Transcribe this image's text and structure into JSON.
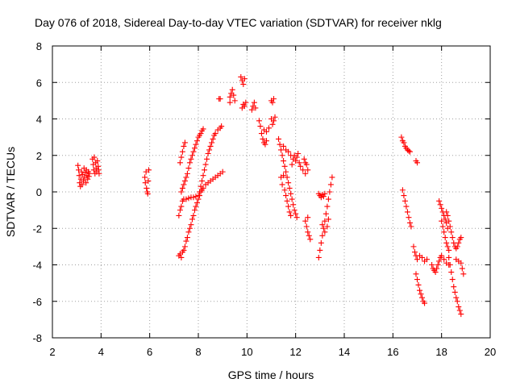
{
  "chart_data": {
    "type": "scatter",
    "title": "Day 076 of 2018, Sidereal Day-to-day VTEC variation (SDTVAR) for receiver nklg",
    "xlabel": "GPS time / hours",
    "ylabel": "SDTVAR / TECUs",
    "xlim": [
      2,
      20
    ],
    "ylim": [
      -8,
      8
    ],
    "xticks": [
      2,
      4,
      6,
      8,
      10,
      12,
      14,
      16,
      18,
      20
    ],
    "yticks": [
      -8,
      -6,
      -4,
      -2,
      0,
      2,
      4,
      6,
      8
    ],
    "xtick_labels": [
      "2",
      "4",
      "6",
      "8",
      "10",
      "12",
      "14",
      "16",
      "18",
      "20"
    ],
    "ytick_labels": [
      "-8",
      "-6",
      "-4",
      "-2",
      "0",
      "2",
      "4",
      "6",
      "8"
    ],
    "grid": true,
    "marker": "+",
    "color": "#ff0000",
    "series": [
      {
        "name": "SDTVAR",
        "points": [
          [
            3.05,
            1.45
          ],
          [
            3.08,
            1.2
          ],
          [
            3.1,
            0.9
          ],
          [
            3.12,
            0.5
          ],
          [
            3.15,
            0.3
          ],
          [
            3.17,
            0.7
          ],
          [
            3.2,
            1.1
          ],
          [
            3.22,
            0.4
          ],
          [
            3.25,
            0.95
          ],
          [
            3.28,
            0.6
          ],
          [
            3.3,
            1.3
          ],
          [
            3.32,
            0.8
          ],
          [
            3.35,
            1.05
          ],
          [
            3.38,
            0.5
          ],
          [
            3.4,
            1.2
          ],
          [
            3.42,
            0.9
          ],
          [
            3.45,
            0.7
          ],
          [
            3.48,
            1.1
          ],
          [
            3.5,
            0.85
          ],
          [
            3.52,
            1.0
          ],
          [
            3.65,
            1.8
          ],
          [
            3.68,
            1.5
          ],
          [
            3.7,
            1.2
          ],
          [
            3.72,
            1.9
          ],
          [
            3.75,
            1.0
          ],
          [
            3.78,
            1.6
          ],
          [
            3.8,
            1.3
          ],
          [
            3.82,
            1.1
          ],
          [
            3.85,
            1.7
          ],
          [
            3.88,
            1.4
          ],
          [
            3.9,
            1.2
          ],
          [
            3.92,
            1.0
          ],
          [
            5.8,
            0.8
          ],
          [
            5.82,
            0.5
          ],
          [
            5.85,
            1.1
          ],
          [
            5.87,
            0.2
          ],
          [
            5.9,
            0.0
          ],
          [
            5.92,
            -0.1
          ],
          [
            5.94,
            0.6
          ],
          [
            5.96,
            1.2
          ],
          [
            7.2,
            -3.5
          ],
          [
            7.25,
            -3.4
          ],
          [
            7.3,
            -3.6
          ],
          [
            7.35,
            -3.3
          ],
          [
            7.4,
            -3.2
          ],
          [
            7.45,
            -3.0
          ],
          [
            7.5,
            -2.7
          ],
          [
            7.55,
            -2.5
          ],
          [
            7.6,
            -2.2
          ],
          [
            7.65,
            -2.0
          ],
          [
            7.7,
            -1.8
          ],
          [
            7.75,
            -1.5
          ],
          [
            7.8,
            -1.3
          ],
          [
            7.85,
            -1.0
          ],
          [
            7.9,
            -0.8
          ],
          [
            7.95,
            -0.6
          ],
          [
            8.0,
            -0.4
          ],
          [
            8.05,
            -0.2
          ],
          [
            8.1,
            0.0
          ],
          [
            8.15,
            0.1
          ],
          [
            8.2,
            0.2
          ],
          [
            8.3,
            0.4
          ],
          [
            8.4,
            0.5
          ],
          [
            8.5,
            0.6
          ],
          [
            8.6,
            0.7
          ],
          [
            8.7,
            0.8
          ],
          [
            8.8,
            0.9
          ],
          [
            8.9,
            1.0
          ],
          [
            9.0,
            1.1
          ],
          [
            7.2,
            -1.3
          ],
          [
            7.25,
            -1.0
          ],
          [
            7.3,
            -0.8
          ],
          [
            7.35,
            -0.5
          ],
          [
            7.4,
            -0.4
          ],
          [
            7.5,
            -0.4
          ],
          [
            7.6,
            -0.35
          ],
          [
            7.7,
            -0.3
          ],
          [
            7.8,
            -0.3
          ],
          [
            7.9,
            -0.25
          ],
          [
            8.0,
            -0.2
          ],
          [
            8.05,
            0.0
          ],
          [
            8.1,
            0.3
          ],
          [
            8.15,
            0.6
          ],
          [
            8.2,
            0.9
          ],
          [
            8.25,
            1.2
          ],
          [
            8.3,
            1.5
          ],
          [
            8.35,
            1.8
          ],
          [
            8.4,
            2.1
          ],
          [
            8.45,
            2.3
          ],
          [
            8.5,
            2.5
          ],
          [
            8.55,
            2.7
          ],
          [
            8.6,
            2.9
          ],
          [
            8.65,
            3.1
          ],
          [
            8.7,
            3.2
          ],
          [
            8.8,
            3.4
          ],
          [
            8.9,
            3.5
          ],
          [
            8.95,
            3.6
          ],
          [
            7.25,
            1.6
          ],
          [
            7.3,
            1.9
          ],
          [
            7.35,
            2.2
          ],
          [
            7.4,
            2.5
          ],
          [
            7.45,
            2.7
          ],
          [
            7.3,
            0.0
          ],
          [
            7.35,
            0.2
          ],
          [
            7.4,
            0.4
          ],
          [
            7.45,
            0.6
          ],
          [
            7.5,
            0.8
          ],
          [
            7.55,
            1.0
          ],
          [
            7.6,
            1.3
          ],
          [
            7.65,
            1.6
          ],
          [
            7.7,
            1.8
          ],
          [
            7.75,
            2.0
          ],
          [
            7.8,
            2.2
          ],
          [
            7.85,
            2.4
          ],
          [
            7.9,
            2.6
          ],
          [
            7.95,
            2.8
          ],
          [
            8.0,
            3.0
          ],
          [
            8.05,
            3.1
          ],
          [
            8.1,
            3.2
          ],
          [
            8.15,
            3.35
          ],
          [
            8.2,
            3.45
          ],
          [
            8.85,
            5.1
          ],
          [
            8.9,
            5.1
          ],
          [
            9.3,
            5.2
          ],
          [
            9.35,
            5.4
          ],
          [
            9.4,
            5.6
          ],
          [
            9.45,
            5.3
          ],
          [
            9.5,
            5.0
          ],
          [
            9.3,
            4.9
          ],
          [
            9.75,
            6.3
          ],
          [
            9.8,
            6.1
          ],
          [
            9.85,
            5.9
          ],
          [
            9.9,
            6.2
          ],
          [
            9.8,
            4.6
          ],
          [
            9.85,
            4.8
          ],
          [
            9.9,
            4.7
          ],
          [
            9.95,
            4.9
          ],
          [
            10.2,
            4.5
          ],
          [
            10.25,
            4.7
          ],
          [
            10.3,
            4.9
          ],
          [
            10.35,
            4.6
          ],
          [
            10.5,
            3.9
          ],
          [
            10.55,
            3.6
          ],
          [
            10.6,
            3.2
          ],
          [
            10.65,
            2.9
          ],
          [
            10.7,
            2.7
          ],
          [
            10.75,
            2.6
          ],
          [
            10.8,
            2.8
          ],
          [
            10.7,
            3.4
          ],
          [
            10.8,
            3.3
          ],
          [
            10.9,
            3.5
          ],
          [
            11.0,
            5.0
          ],
          [
            11.05,
            4.9
          ],
          [
            11.1,
            5.1
          ],
          [
            11.0,
            4.0
          ],
          [
            11.05,
            3.7
          ],
          [
            11.1,
            3.9
          ],
          [
            11.15,
            4.1
          ],
          [
            11.3,
            2.9
          ],
          [
            11.35,
            2.6
          ],
          [
            11.4,
            2.3
          ],
          [
            11.45,
            2.0
          ],
          [
            11.5,
            1.7
          ],
          [
            11.55,
            1.4
          ],
          [
            11.6,
            1.1
          ],
          [
            11.65,
            0.8
          ],
          [
            11.7,
            0.5
          ],
          [
            11.75,
            0.2
          ],
          [
            11.8,
            -0.1
          ],
          [
            11.85,
            -0.4
          ],
          [
            11.9,
            -0.7
          ],
          [
            11.95,
            -1.0
          ],
          [
            12.0,
            -1.2
          ],
          [
            12.05,
            -1.4
          ],
          [
            11.4,
            0.8
          ],
          [
            11.45,
            0.4
          ],
          [
            11.5,
            0.9
          ],
          [
            11.55,
            0.1
          ],
          [
            11.6,
            -0.2
          ],
          [
            11.65,
            -0.5
          ],
          [
            11.7,
            -0.8
          ],
          [
            11.75,
            -1.1
          ],
          [
            11.8,
            -1.3
          ],
          [
            11.85,
            1.5
          ],
          [
            11.9,
            1.8
          ],
          [
            11.95,
            2.0
          ],
          [
            12.0,
            1.7
          ],
          [
            12.05,
            1.9
          ],
          [
            12.1,
            2.1
          ],
          [
            12.15,
            1.6
          ],
          [
            12.2,
            1.4
          ],
          [
            12.3,
            1.2
          ],
          [
            12.4,
            1.0
          ],
          [
            11.5,
            2.5
          ],
          [
            11.6,
            2.3
          ],
          [
            11.7,
            2.2
          ],
          [
            11.8,
            2.0
          ],
          [
            12.35,
            1.8
          ],
          [
            12.4,
            1.6
          ],
          [
            12.45,
            1.5
          ],
          [
            12.5,
            1.2
          ],
          [
            12.4,
            -1.6
          ],
          [
            12.45,
            -1.9
          ],
          [
            12.5,
            -2.2
          ],
          [
            12.55,
            -2.4
          ],
          [
            12.6,
            -2.6
          ],
          [
            12.5,
            -1.4
          ],
          [
            12.95,
            -0.1
          ],
          [
            13.0,
            -0.2
          ],
          [
            13.05,
            -0.3
          ],
          [
            13.1,
            -0.15
          ],
          [
            13.15,
            -0.25
          ],
          [
            13.2,
            -0.1
          ],
          [
            12.95,
            -3.6
          ],
          [
            13.0,
            -3.2
          ],
          [
            13.05,
            -2.8
          ],
          [
            13.1,
            -2.4
          ],
          [
            13.15,
            -2.0
          ],
          [
            13.2,
            -1.6
          ],
          [
            13.25,
            -1.2
          ],
          [
            13.3,
            -0.8
          ],
          [
            13.35,
            -0.4
          ],
          [
            13.4,
            0.0
          ],
          [
            13.45,
            0.4
          ],
          [
            13.5,
            0.8
          ],
          [
            13.1,
            -1.8
          ],
          [
            13.2,
            -2.2
          ],
          [
            13.3,
            -1.9
          ],
          [
            13.35,
            -1.5
          ],
          [
            16.35,
            3.0
          ],
          [
            16.4,
            2.8
          ],
          [
            16.45,
            2.7
          ],
          [
            16.5,
            2.5
          ],
          [
            16.55,
            2.4
          ],
          [
            16.6,
            2.3
          ],
          [
            16.65,
            2.25
          ],
          [
            16.7,
            2.2
          ],
          [
            16.95,
            1.7
          ],
          [
            17.0,
            1.6
          ],
          [
            16.4,
            0.1
          ],
          [
            16.45,
            -0.2
          ],
          [
            16.5,
            -0.5
          ],
          [
            16.55,
            -0.8
          ],
          [
            16.6,
            -1.1
          ],
          [
            16.65,
            -1.4
          ],
          [
            16.7,
            -1.7
          ],
          [
            16.75,
            -1.9
          ],
          [
            16.85,
            -3.0
          ],
          [
            16.9,
            -3.3
          ],
          [
            16.95,
            -3.5
          ],
          [
            17.0,
            -3.7
          ],
          [
            17.1,
            -3.5
          ],
          [
            17.2,
            -3.6
          ],
          [
            17.3,
            -3.8
          ],
          [
            17.4,
            -3.7
          ],
          [
            16.95,
            -4.5
          ],
          [
            17.0,
            -4.8
          ],
          [
            17.05,
            -5.1
          ],
          [
            17.1,
            -5.4
          ],
          [
            17.15,
            -5.6
          ],
          [
            17.2,
            -5.8
          ],
          [
            17.25,
            -6.0
          ],
          [
            17.3,
            -6.1
          ],
          [
            17.6,
            -4.0
          ],
          [
            17.65,
            -4.2
          ],
          [
            17.7,
            -4.3
          ],
          [
            17.75,
            -4.4
          ],
          [
            17.8,
            -4.2
          ],
          [
            17.85,
            -4.0
          ],
          [
            17.9,
            -3.8
          ],
          [
            17.95,
            -3.6
          ],
          [
            17.9,
            -0.5
          ],
          [
            17.95,
            -0.7
          ],
          [
            18.0,
            -0.9
          ],
          [
            18.05,
            -1.1
          ],
          [
            18.1,
            -1.3
          ],
          [
            18.15,
            -1.5
          ],
          [
            18.2,
            -1.7
          ],
          [
            18.25,
            -2.0
          ],
          [
            18.0,
            -1.6
          ],
          [
            18.05,
            -1.9
          ],
          [
            18.1,
            -2.2
          ],
          [
            18.15,
            -2.5
          ],
          [
            18.2,
            -2.8
          ],
          [
            18.25,
            -3.0
          ],
          [
            18.3,
            -3.2
          ],
          [
            18.2,
            -1.1
          ],
          [
            18.25,
            -1.3
          ],
          [
            18.3,
            -1.6
          ],
          [
            18.35,
            -1.9
          ],
          [
            18.4,
            -2.2
          ],
          [
            18.45,
            -2.5
          ],
          [
            18.5,
            -2.8
          ],
          [
            18.55,
            -3.0
          ],
          [
            18.6,
            -3.1
          ],
          [
            18.65,
            -3.0
          ],
          [
            18.7,
            -2.8
          ],
          [
            18.75,
            -2.6
          ],
          [
            18.8,
            -2.5
          ],
          [
            18.3,
            -3.6
          ],
          [
            18.35,
            -4.0
          ],
          [
            18.4,
            -4.4
          ],
          [
            18.45,
            -4.8
          ],
          [
            18.5,
            -5.2
          ],
          [
            18.55,
            -5.5
          ],
          [
            18.6,
            -5.8
          ],
          [
            18.65,
            -6.0
          ],
          [
            18.7,
            -6.3
          ],
          [
            18.75,
            -6.5
          ],
          [
            18.8,
            -6.7
          ],
          [
            18.6,
            -3.7
          ],
          [
            18.7,
            -3.8
          ],
          [
            18.8,
            -3.9
          ],
          [
            18.85,
            -4.2
          ],
          [
            18.9,
            -4.5
          ],
          [
            18.0,
            -3.5
          ],
          [
            18.1,
            -3.7
          ],
          [
            18.2,
            -3.9
          ],
          [
            18.3,
            -4.0
          ]
        ]
      }
    ]
  }
}
